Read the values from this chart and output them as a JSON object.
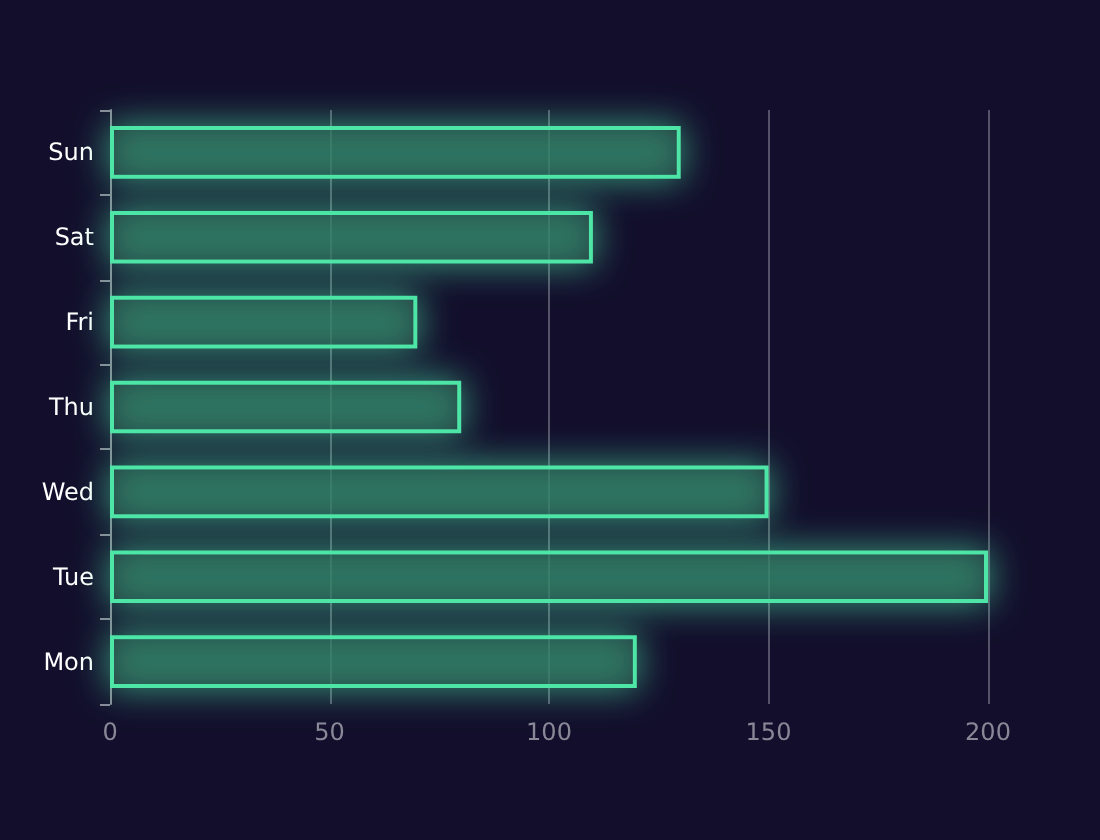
{
  "chart_data": {
    "type": "bar",
    "orientation": "horizontal",
    "categories": [
      "Sun",
      "Sat",
      "Fri",
      "Thu",
      "Wed",
      "Tue",
      "Mon"
    ],
    "values": [
      130,
      110,
      70,
      80,
      150,
      200,
      120
    ],
    "color": "#4ee6a6",
    "xlim": [
      0,
      200
    ],
    "xticks": [
      0,
      50,
      100,
      150,
      200
    ],
    "grid": "x"
  }
}
